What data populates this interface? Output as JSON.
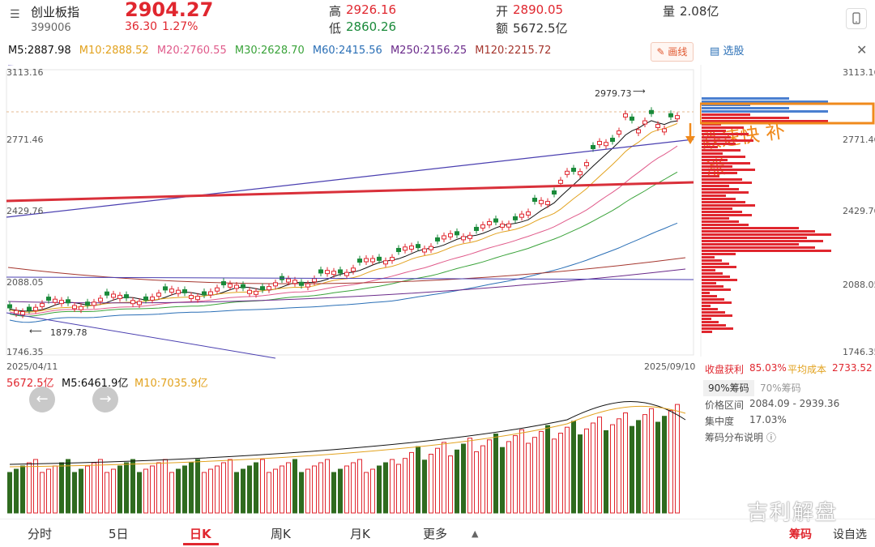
{
  "header": {
    "name": "创业板指",
    "code": "399006",
    "price": "2904.27",
    "change": "36.30",
    "change_pct": "1.27%",
    "high_label": "高",
    "high": "2926.16",
    "low_label": "低",
    "low": "2860.26",
    "open_label": "开",
    "open": "2890.05",
    "amount_label": "额",
    "amount": "5672.5亿",
    "volume_label": "量",
    "volume": "2.08亿"
  },
  "ma": {
    "m5": "M5:2887.98",
    "m10": "M10:2888.52",
    "m20": "M20:2760.55",
    "m30": "M30:2628.70",
    "m60": "M60:2415.56",
    "m250": "M250:2156.25",
    "m120": "M120:2215.72"
  },
  "toolbar": {
    "draw_label": "画线"
  },
  "chart": {
    "y_labels": [
      "3113.16",
      "2771.46",
      "2429.76",
      "2088.05",
      "1746.35"
    ],
    "high_mark": "2979.73",
    "low_mark": "1879.78",
    "date_start": "2025/04/11",
    "date_end": "2025/09/10",
    "annotation": "跌速快 补涨"
  },
  "volume": {
    "current": "5672.5亿",
    "m5": "M5:6461.9亿",
    "m10": "M10:7035.9亿"
  },
  "side": {
    "select_label": "选股",
    "profit_label": "收盘获利",
    "profit": "85.03%",
    "avg_label": "平均成本",
    "avg": "2733.52",
    "tab90": "90%筹码",
    "tab70": "70%筹码",
    "range_label": "价格区间",
    "range": "2084.09 - 2939.36",
    "conc_label": "集中度",
    "conc": "17.03%",
    "explain": "筹码分布说明"
  },
  "tabs": [
    "分时",
    "5日",
    "日K",
    "周K",
    "月K",
    "更多"
  ],
  "bottom": {
    "chips_label": "筹码",
    "settings_label": "设自选"
  },
  "watermark": "吉利解盘",
  "colors": {
    "up": "#e0272f",
    "down": "#1a8a3a",
    "accent": "#e0572f"
  }
}
